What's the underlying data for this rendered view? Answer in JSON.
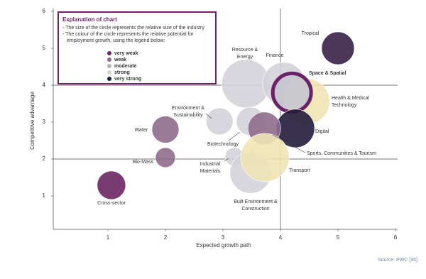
{
  "chart_data": {
    "type": "bubble",
    "x_label": "Expected growth path",
    "y_label": "Competitive advantage",
    "source": "Source: PWC [36]",
    "xlim": [
      0,
      6
    ],
    "ylim": [
      0,
      6
    ],
    "xticks": [
      1,
      2,
      3,
      4,
      5,
      6
    ],
    "yticks": [
      1,
      2,
      3,
      4,
      5,
      6
    ],
    "x_reference_lines": [
      4
    ],
    "y_reference_lines": [
      2,
      4
    ],
    "labels": [
      [
        "Tropical"
      ],
      [
        "Resource &",
        "Energy"
      ],
      [
        "Finance"
      ],
      [
        "Health & Medical",
        "Technology"
      ],
      [
        "Space & Spatial"
      ],
      [
        "Digital"
      ],
      [
        "Environment &",
        "Sustainability"
      ],
      [
        "Biotechnology"
      ],
      [
        "Sports, Communities & Tourism"
      ],
      [
        "Water"
      ],
      [
        "Bio-Mass"
      ],
      [
        "Industrial",
        "Materials"
      ],
      [
        "Built Environment &",
        "Construction"
      ],
      [
        "Transport"
      ],
      [
        "Cross-sector"
      ]
    ],
    "x": [
      5.0,
      3.4,
      4.06,
      4.46,
      4.2,
      4.26,
      2.94,
      3.48,
      3.72,
      2.0,
      2.0,
      3.2,
      3.48,
      3.73,
      1.06
    ],
    "y": [
      5.0,
      4.04,
      4.04,
      3.56,
      3.8,
      2.83,
      3.02,
      3.02,
      2.83,
      2.8,
      2.04,
      2.06,
      1.63,
      2.04,
      1.29
    ],
    "sizes": [
      23,
      34,
      30,
      32,
      27,
      27,
      19,
      20,
      23,
      19,
      14,
      13,
      29,
      34,
      20
    ],
    "colors": [
      "#3a2147",
      "#d3d3d9",
      "#d3d3d9",
      "#f0e4b4",
      "#c5c5cf",
      "#231c3c",
      "#d3d3d9",
      "#d3d3d9",
      "#8f6b8c",
      "#8f6b8c",
      "#8f6b8c",
      "#d3d3d9",
      "#d3d3d9",
      "#f0e4b4",
      "#6b2664"
    ],
    "edge_colors": [
      null,
      null,
      null,
      null,
      "#6b2266",
      null,
      null,
      null,
      null,
      null,
      null,
      null,
      null,
      null,
      null
    ],
    "legend": {
      "title": "Explanation of chart",
      "notes": [
        "- The size of the circle represents the relative size of the industry",
        "- The colour of the circle represents the relative potential for",
        "employment growth, using the legend below:"
      ],
      "items": [
        {
          "name": "very weak",
          "color": "#6b2664"
        },
        {
          "name": "weak",
          "color": "#8f6b8c"
        },
        {
          "name": "moderate",
          "color": "#b9aebd"
        },
        {
          "name": "strong",
          "color": "#d3d3d9"
        },
        {
          "name": "very strong",
          "color": "#231c3c"
        }
      ]
    }
  }
}
